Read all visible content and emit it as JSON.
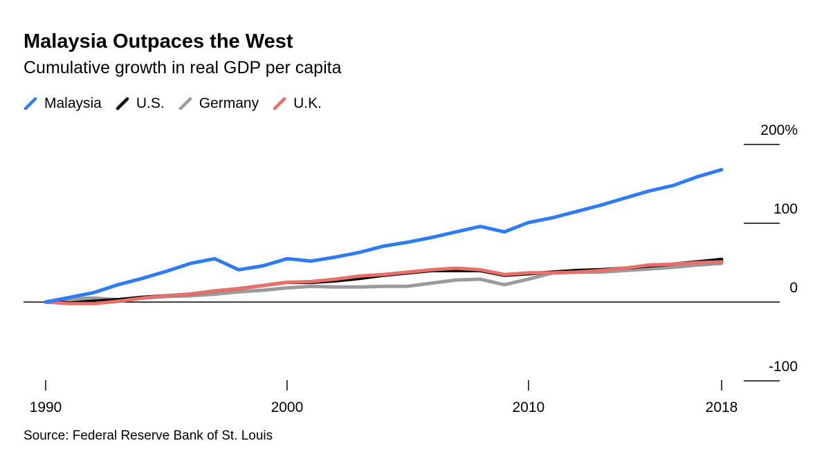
{
  "chart_data": {
    "type": "line",
    "title": "Malaysia Outpaces the West",
    "subtitle": "Cumulative growth in real GDP per capita",
    "xlabel": "",
    "ylabel": "",
    "x": [
      1990,
      1991,
      1992,
      1993,
      1994,
      1995,
      1996,
      1997,
      1998,
      1999,
      2000,
      2001,
      2002,
      2003,
      2004,
      2005,
      2006,
      2007,
      2008,
      2009,
      2010,
      2011,
      2012,
      2013,
      2014,
      2015,
      2016,
      2017,
      2018
    ],
    "xlim": [
      1990,
      2018
    ],
    "ylim": [
      -100,
      200
    ],
    "x_ticks": [
      {
        "value": 1990,
        "label": "1990"
      },
      {
        "value": 2000,
        "label": "2000"
      },
      {
        "value": 2010,
        "label": "2010"
      },
      {
        "value": 2018,
        "label": "2018"
      }
    ],
    "y_ticks": [
      {
        "value": 200,
        "label": "200%"
      },
      {
        "value": 100,
        "label": "100"
      },
      {
        "value": 0,
        "label": "0"
      },
      {
        "value": -100,
        "label": "-100"
      }
    ],
    "legend_placement": "top-left",
    "series": [
      {
        "name": "Malaysia",
        "color": "#2f7bf0",
        "values": [
          0,
          6,
          12,
          22,
          30,
          39,
          49,
          55,
          41,
          46,
          55,
          52,
          57,
          63,
          71,
          76,
          82,
          89,
          96,
          89,
          101,
          107,
          115,
          123,
          132,
          141,
          148,
          159,
          168
        ]
      },
      {
        "name": "U.S.",
        "color": "#000000",
        "values": [
          0,
          -1,
          1,
          3,
          6,
          8,
          10,
          14,
          17,
          21,
          25,
          25,
          27,
          30,
          34,
          37,
          40,
          40,
          40,
          34,
          36,
          38,
          40,
          41,
          43,
          46,
          48,
          51,
          54
        ]
      },
      {
        "name": "Germany",
        "color": "#9b9b9b",
        "values": [
          0,
          4,
          5,
          3,
          5,
          7,
          8,
          10,
          13,
          15,
          18,
          20,
          19,
          19,
          20,
          20,
          24,
          28,
          29,
          22,
          29,
          37,
          38,
          38,
          40,
          42,
          44,
          47,
          49
        ]
      },
      {
        "name": "U.K.",
        "color": "#e8706a",
        "values": [
          0,
          -2,
          -2,
          1,
          5,
          8,
          10,
          14,
          17,
          21,
          25,
          26,
          29,
          33,
          35,
          38,
          41,
          43,
          41,
          35,
          37,
          37,
          38,
          40,
          43,
          47,
          48,
          50,
          51
        ]
      }
    ],
    "source": "Source: Federal Reserve Bank of St. Louis"
  }
}
